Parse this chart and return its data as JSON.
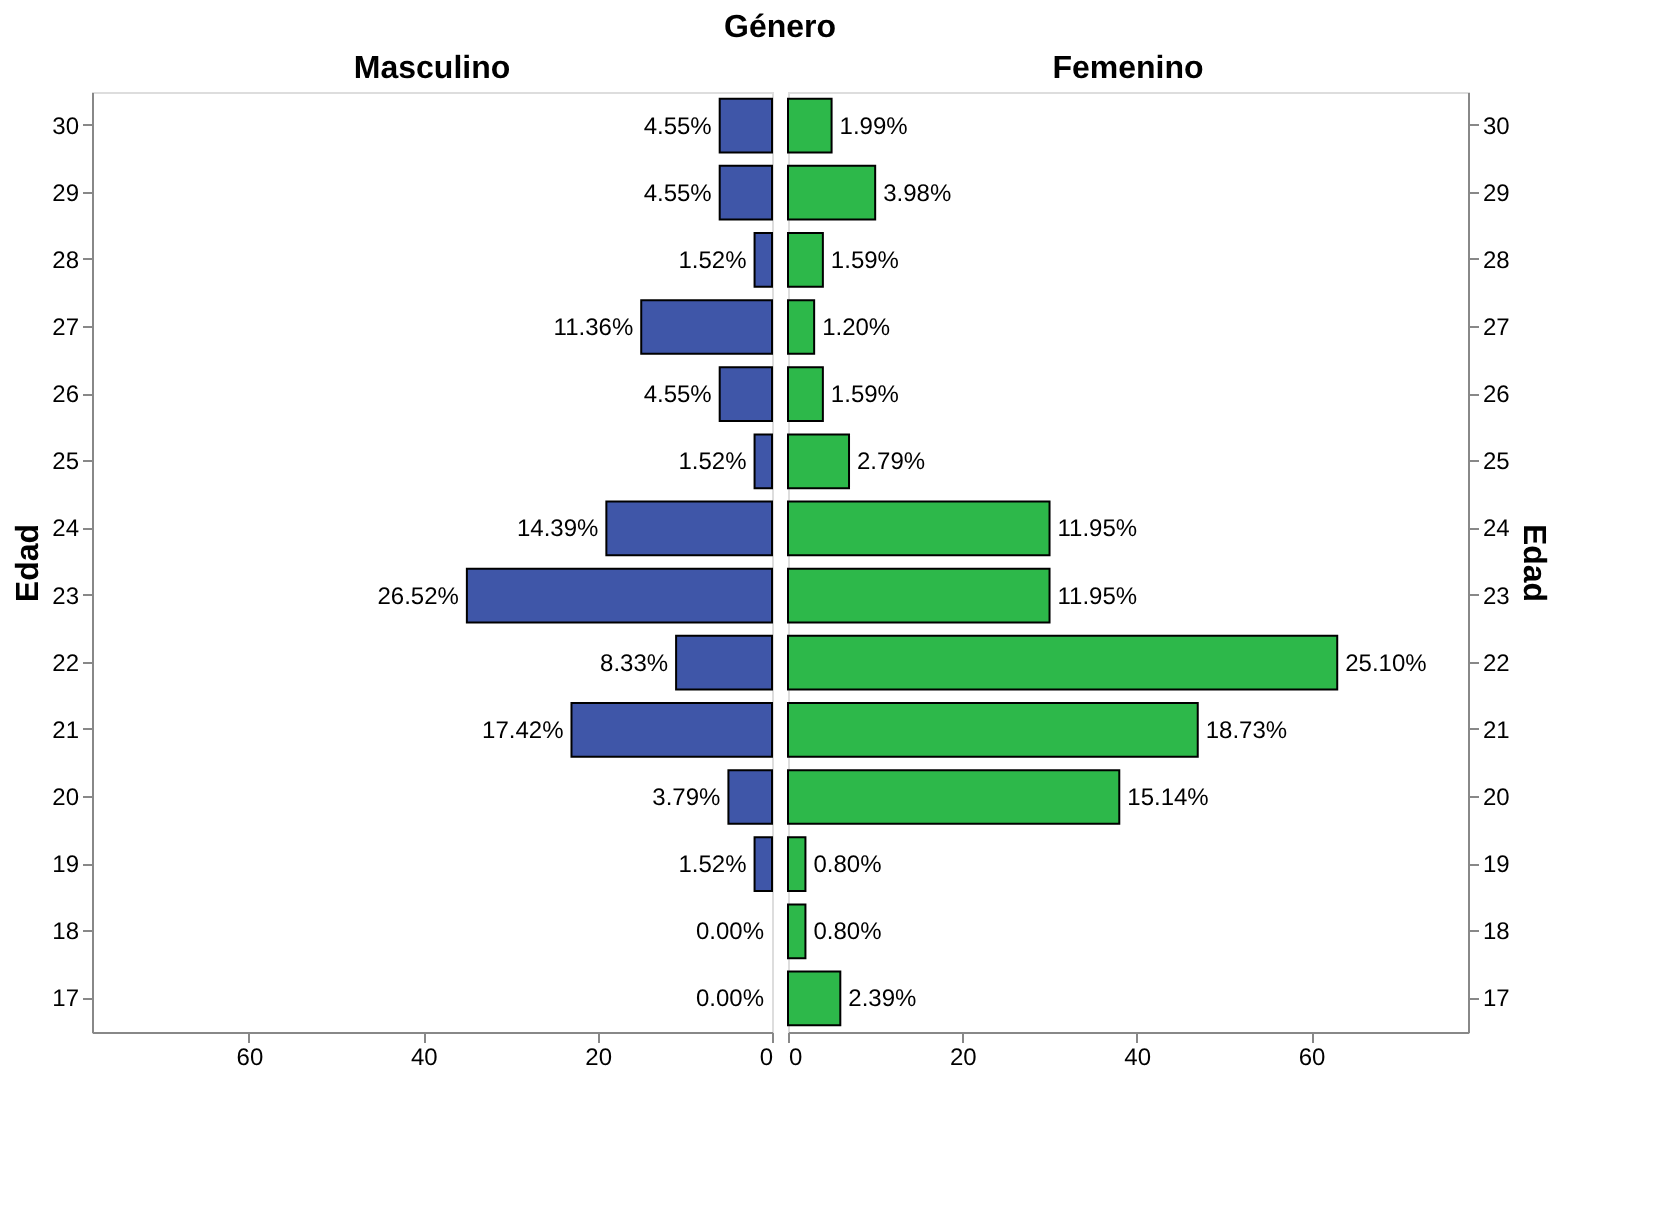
{
  "chart_data": [
    {
      "type": "bar",
      "orientation": "horizontal",
      "title": "Género",
      "subtitle": "Masculino",
      "ylabel": "Edad",
      "categories": [
        "30",
        "29",
        "28",
        "27",
        "26",
        "25",
        "24",
        "23",
        "22",
        "21",
        "20",
        "19",
        "18",
        "17"
      ],
      "values": [
        6,
        6,
        2,
        15,
        6,
        2,
        19,
        35,
        11,
        23,
        5,
        2,
        0,
        0
      ],
      "annotations": [
        {
          "text": "4.55%",
          "x": 6,
          "y": "30"
        },
        {
          "text": "4.55%",
          "x": 6,
          "y": "29"
        },
        {
          "text": "1.52%",
          "x": 2,
          "y": "28"
        },
        {
          "text": "11.36%",
          "x": 15,
          "y": "27"
        },
        {
          "text": "4.55%",
          "x": 6,
          "y": "26"
        },
        {
          "text": "1.52%",
          "x": 2,
          "y": "25"
        },
        {
          "text": "14.39%",
          "x": 19,
          "y": "24"
        },
        {
          "text": "26.52%",
          "x": 35,
          "y": "23"
        },
        {
          "text": "8.33%",
          "x": 11,
          "y": "22"
        },
        {
          "text": "17.42%",
          "x": 23,
          "y": "21"
        },
        {
          "text": "3.79%",
          "x": 5,
          "y": "20"
        },
        {
          "text": "1.52%",
          "x": 2,
          "y": "19"
        },
        {
          "text": "0.00%",
          "x": 0,
          "y": "18"
        },
        {
          "text": "0.00%",
          "x": 0,
          "y": "17"
        }
      ],
      "color": "#3f56a8",
      "xlim": [
        78,
        0
      ],
      "xticks": [
        60,
        40,
        20,
        0
      ],
      "grid": false,
      "legend": false
    },
    {
      "type": "bar",
      "orientation": "horizontal",
      "subtitle": "Femenino",
      "ylabel": "Edad",
      "categories": [
        "30",
        "29",
        "28",
        "27",
        "26",
        "25",
        "24",
        "23",
        "22",
        "21",
        "20",
        "19",
        "18",
        "17"
      ],
      "values": [
        5,
        10,
        4,
        3,
        4,
        7,
        30,
        30,
        63,
        47,
        38,
        2,
        2,
        6
      ],
      "annotations": [
        {
          "text": "1.99%",
          "x": 5,
          "y": "30"
        },
        {
          "text": "3.98%",
          "x": 10,
          "y": "29"
        },
        {
          "text": "1.59%",
          "x": 4,
          "y": "28"
        },
        {
          "text": "1.20%",
          "x": 3,
          "y": "27"
        },
        {
          "text": "1.59%",
          "x": 4,
          "y": "26"
        },
        {
          "text": "2.79%",
          "x": 7,
          "y": "25"
        },
        {
          "text": "11.95%",
          "x": 30,
          "y": "24"
        },
        {
          "text": "11.95%",
          "x": 30,
          "y": "23"
        },
        {
          "text": "25.10%",
          "x": 63,
          "y": "22"
        },
        {
          "text": "18.73%",
          "x": 47,
          "y": "21"
        },
        {
          "text": "15.14%",
          "x": 38,
          "y": "20"
        },
        {
          "text": "0.80%",
          "x": 2,
          "y": "19"
        },
        {
          "text": "0.80%",
          "x": 2,
          "y": "18"
        },
        {
          "text": "2.39%",
          "x": 6,
          "y": "17"
        }
      ],
      "color": "#2db84a",
      "xlim": [
        0,
        78
      ],
      "xticks": [
        0,
        20,
        40,
        60
      ],
      "grid": false,
      "legend": false
    }
  ]
}
